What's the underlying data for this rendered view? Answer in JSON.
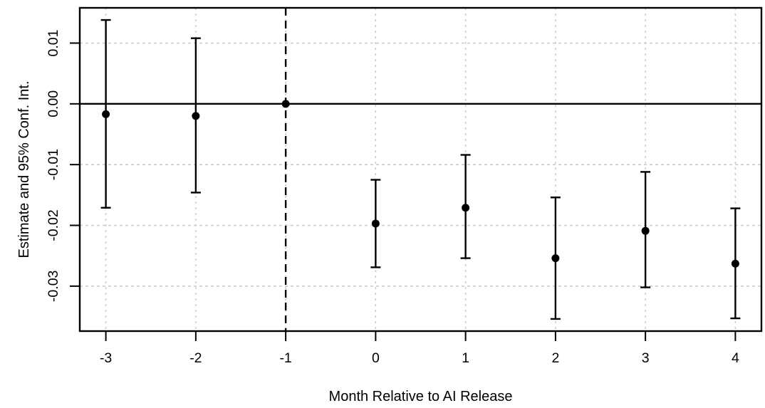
{
  "chart_data": {
    "type": "scatter",
    "subtype": "event-study-error-bars",
    "title": "",
    "xlabel": "Month Relative to AI Release",
    "ylabel": "Estimate and 95% Conf. Int.",
    "x_ticks": [
      -3,
      -2,
      -1,
      0,
      1,
      2,
      3,
      4
    ],
    "x_tick_labels": [
      "-3",
      "-2",
      "-1",
      "0",
      "1",
      "2",
      "3",
      "4"
    ],
    "y_ticks": [
      0.01,
      0.0,
      -0.01,
      -0.02,
      -0.03
    ],
    "y_tick_labels": [
      "0.01",
      "0.00",
      "-0.01",
      "-0.02",
      "-0.03"
    ],
    "xlim": [
      -3.29,
      4.29
    ],
    "ylim": [
      -0.0374,
      0.0158
    ],
    "grid": true,
    "legend": "none",
    "zero_line_y": 0,
    "event_line_x": -1,
    "points": [
      {
        "x": -3,
        "estimate": -0.0017,
        "ci_low": -0.0171,
        "ci_high": 0.0138
      },
      {
        "x": -2,
        "estimate": -0.002,
        "ci_low": -0.0146,
        "ci_high": 0.0108
      },
      {
        "x": -1,
        "estimate": 0.0,
        "ci_low": null,
        "ci_high": null
      },
      {
        "x": 0,
        "estimate": -0.0197,
        "ci_low": -0.0269,
        "ci_high": -0.0125
      },
      {
        "x": 1,
        "estimate": -0.0171,
        "ci_low": -0.0254,
        "ci_high": -0.0084
      },
      {
        "x": 2,
        "estimate": -0.0254,
        "ci_low": -0.0354,
        "ci_high": -0.0154
      },
      {
        "x": 3,
        "estimate": -0.0209,
        "ci_low": -0.0302,
        "ci_high": -0.0112
      },
      {
        "x": 4,
        "estimate": -0.0263,
        "ci_low": -0.0353,
        "ci_high": -0.0172
      }
    ],
    "colors": {
      "point": "#000000",
      "error_bar": "#000000",
      "grid": "#cdcdcd",
      "axis": "#000000",
      "zero_line": "#000000",
      "event_line": "#000000",
      "background": "#ffffff"
    }
  }
}
